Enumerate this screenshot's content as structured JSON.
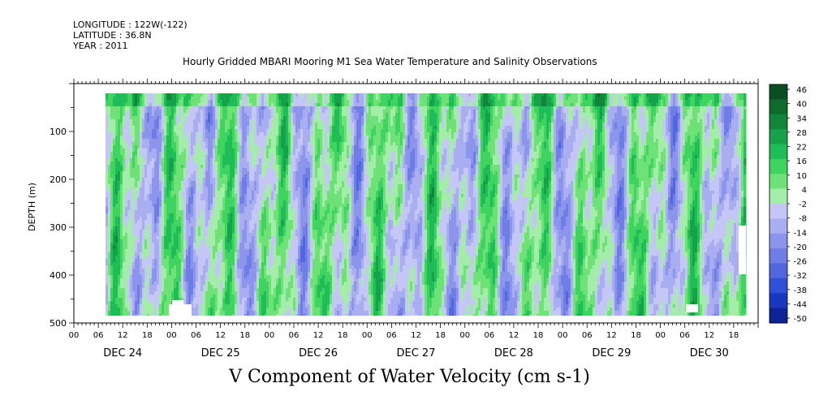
{
  "header": {
    "longitude": "LONGITUDE : 122W(-122)",
    "latitude": "LATITUDE : 36.8N",
    "year": "YEAR : 2011"
  },
  "title": "Hourly Gridded MBARI Mooring M1 Sea Water Temperature and Salinity Observations",
  "x_title": "V Component of Water Velocity (cm s-1)",
  "chart_data": {
    "type": "heatmap",
    "title": "Hourly Gridded MBARI Mooring M1 Sea Water Temperature and Salinity Observations",
    "xlabel": "V Component of Water Velocity (cm s-1)",
    "ylabel": "DEPTH (m)",
    "y_reversed": true,
    "ylim": [
      0,
      500
    ],
    "y_ticks": [
      "100",
      "200",
      "300",
      "400",
      "500"
    ],
    "x_hour_ticks": [
      "00",
      "06",
      "12",
      "18",
      "00",
      "06",
      "12",
      "18",
      "00",
      "06",
      "12",
      "18",
      "00",
      "06",
      "12",
      "18",
      "00",
      "06",
      "12",
      "18",
      "00",
      "06",
      "12",
      "18",
      "00",
      "06",
      "12",
      "18"
    ],
    "x_day_labels": [
      "DEC 24",
      "DEC 25",
      "DEC 26",
      "DEC 27",
      "DEC 28",
      "DEC 29",
      "DEC 30"
    ],
    "data_start_hour": 6,
    "data_end_hour": 165,
    "data_depth_range": [
      20,
      485
    ],
    "colorbar_levels": [
      "46",
      "40",
      "34",
      "28",
      "22",
      "16",
      "10",
      "4",
      "-2",
      "-8",
      "-14",
      "-20",
      "-26",
      "-32",
      "-38",
      "-44",
      "-50"
    ],
    "colorbar_colors": [
      "#0a4f23",
      "#0d6b2b",
      "#11863a",
      "#16a14a",
      "#1fbd57",
      "#3fd45f",
      "#6ee277",
      "#a4ecaa",
      "#c4c6f6",
      "#a9aef1",
      "#8c95ec",
      "#6f7de6",
      "#5166df",
      "#3150d6",
      "#1a38be",
      "#0d2294",
      "#060f6e"
    ],
    "tick_colors": {
      "axis": "#000000"
    },
    "grid": false,
    "legend": "colorbar-right"
  }
}
